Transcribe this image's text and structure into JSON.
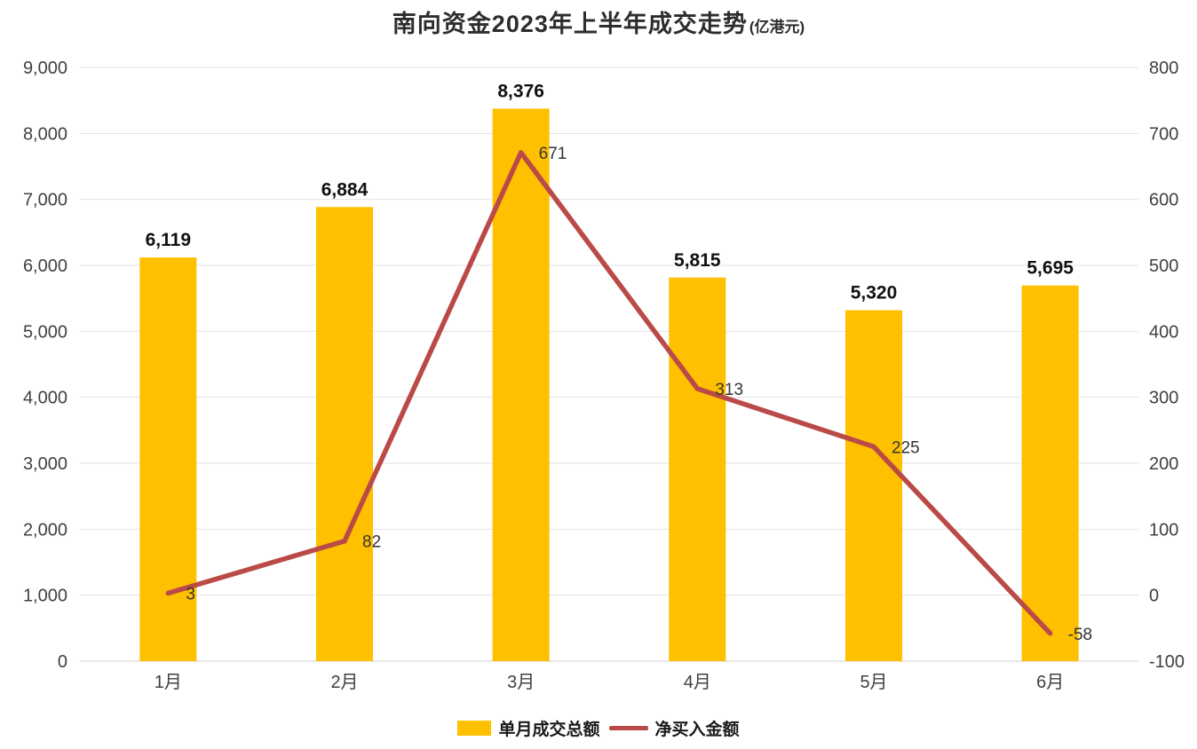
{
  "chart_data": {
    "type": "bar",
    "combo": true,
    "title": "南向资金2023年上半年成交走势",
    "title_unit": "(亿港元)",
    "categories": [
      "1月",
      "2月",
      "3月",
      "4月",
      "5月",
      "6月"
    ],
    "series": [
      {
        "name": "单月成交总额",
        "type": "bar",
        "axis": "left",
        "color": "#FFC000",
        "values": [
          6119,
          6884,
          8376,
          5815,
          5320,
          5695
        ]
      },
      {
        "name": "净买入金额",
        "type": "line",
        "axis": "right",
        "color": "#BA4A47",
        "values": [
          3,
          82,
          671,
          313,
          225,
          -58
        ]
      }
    ],
    "left_axis": {
      "min": 0,
      "max": 9000,
      "step": 1000
    },
    "right_axis": {
      "min": -100,
      "max": 800,
      "step": 100
    },
    "grid": true,
    "legend_position": "bottom"
  }
}
